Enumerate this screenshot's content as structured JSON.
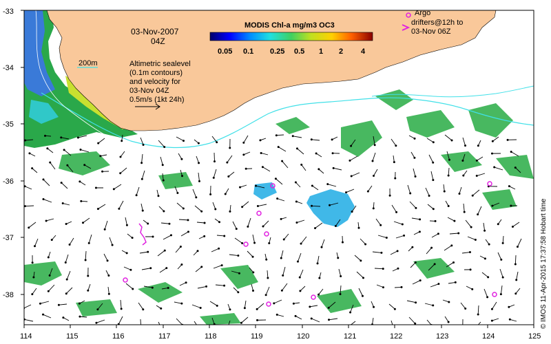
{
  "map": {
    "date": "03-Nov-2007",
    "hour": "04Z",
    "isobath_label": "200m",
    "sealevel_note": [
      "Altimetric sealevel",
      "(0.1m contours)",
      "and velocity for",
      "03-Nov 04Z",
      "0.5m/s (1kt 24h)"
    ],
    "colorbar": {
      "title": "MODIS Chl-a mg/m3 OC3",
      "ticks": [
        "0.05",
        "0.1",
        "0.25",
        "0.5",
        "1",
        "2",
        "4"
      ]
    },
    "argo_legend": [
      "Argo",
      "drifters@12h to",
      "03-Nov 06Z"
    ],
    "credit": "© IMOS 11-Apr-2015 17:37:58 Hobart time",
    "x_ticks": [
      "114",
      "115",
      "116",
      "117",
      "118",
      "119",
      "120",
      "121",
      "122",
      "123",
      "124",
      "125"
    ],
    "y_ticks": [
      "-33",
      "-34",
      "-35",
      "-36",
      "-37",
      "-38"
    ],
    "colors": {
      "land": "#f9c89a",
      "ocean": "#ffffff",
      "argo": "#e020e0",
      "contour": "#40e0e8",
      "arrow": "#000000"
    }
  }
}
